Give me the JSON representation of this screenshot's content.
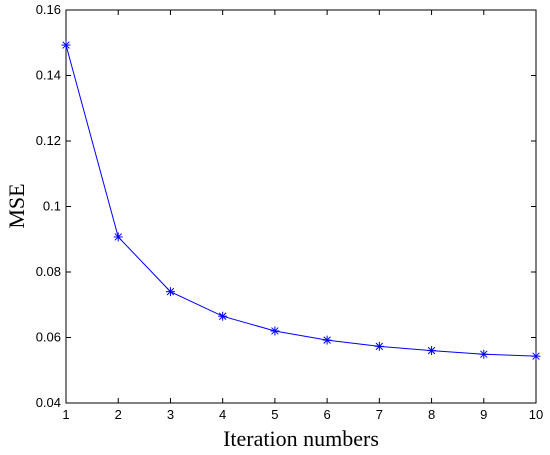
{
  "chart_data": {
    "type": "line",
    "xlabel": "Iteration numbers",
    "ylabel": "MSE",
    "xlim": [
      1,
      10
    ],
    "ylim": [
      0.04,
      0.16
    ],
    "xticks": [
      1,
      2,
      3,
      4,
      5,
      6,
      7,
      8,
      9,
      10
    ],
    "yticks": [
      0.04,
      0.06,
      0.08,
      0.1,
      0.12,
      0.14,
      0.16
    ],
    "ytick_labels": [
      "0.04",
      "0.06",
      "0.08",
      "0.1",
      "0.12",
      "0.14",
      "0.16"
    ],
    "grid": false,
    "series": [
      {
        "x": [
          1,
          2,
          3,
          4,
          5,
          6,
          7,
          8,
          9,
          10
        ],
        "y": [
          0.1493,
          0.0907,
          0.074,
          0.0665,
          0.062,
          0.0592,
          0.0573,
          0.056,
          0.0549,
          0.0543
        ],
        "color": "#0000ff",
        "marker": "asterisk"
      }
    ]
  }
}
